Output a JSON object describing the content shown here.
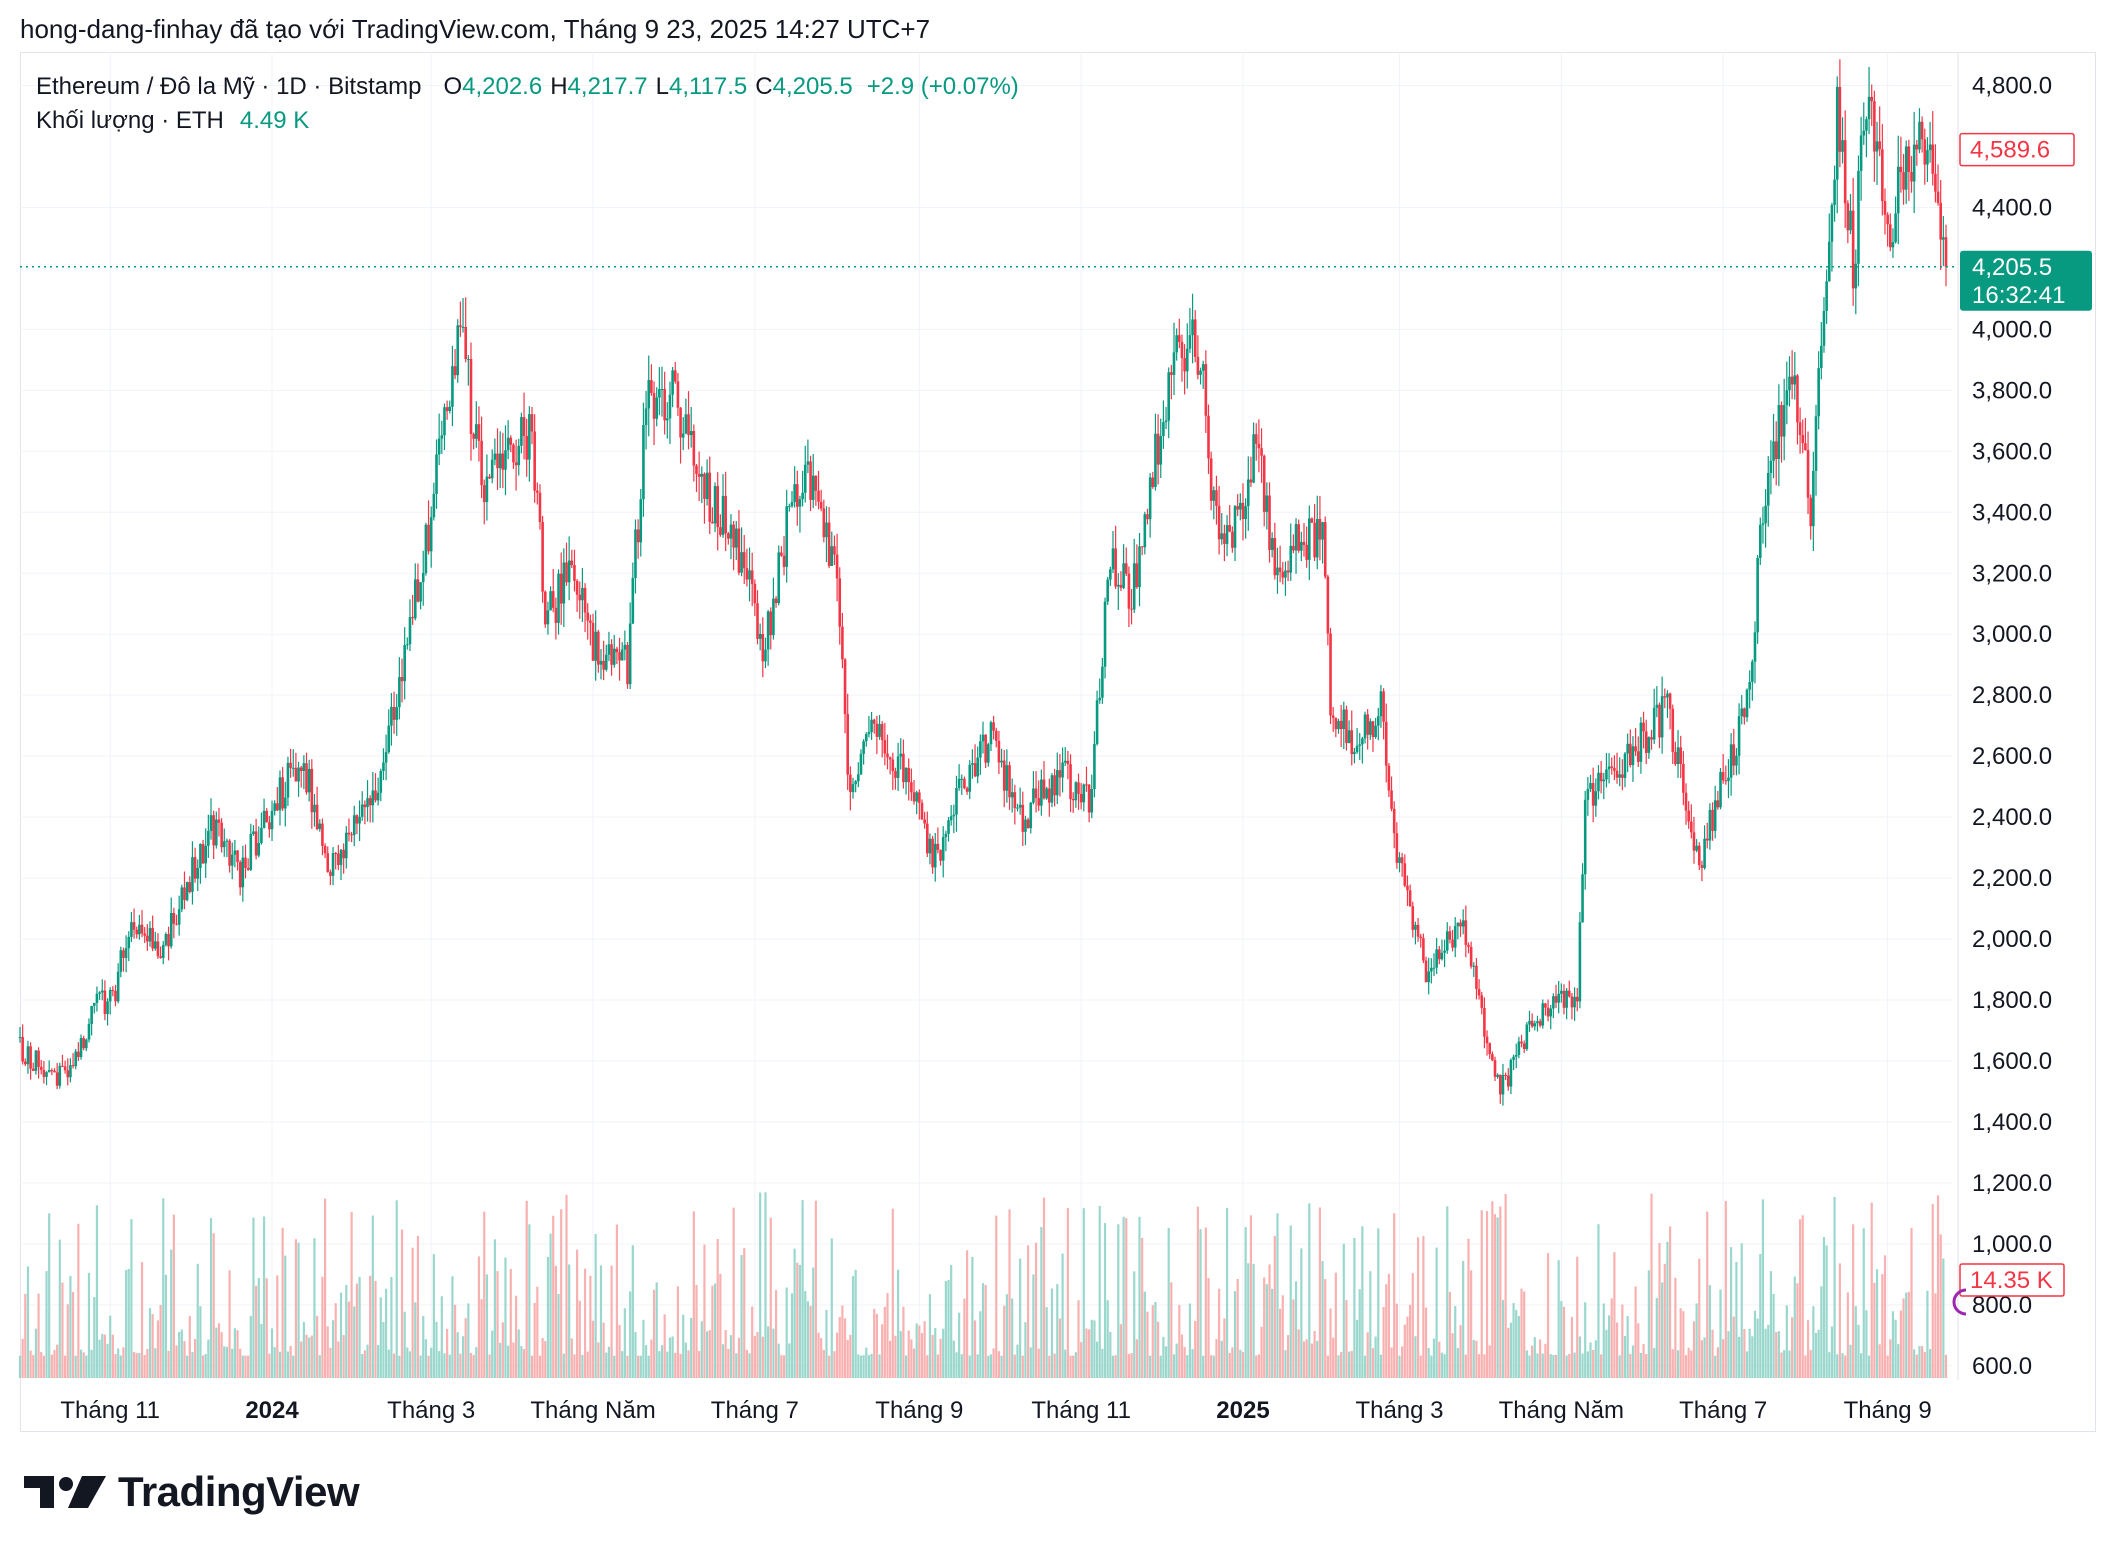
{
  "header": {
    "attribution": "hong-dang-finhay đã tạo với TradingView.com, Tháng 9 23, 2025 14:27 UTC+7"
  },
  "legend": {
    "symbol": "Ethereum / Đô la Mỹ · 1D · Bitstamp",
    "o_label": "O",
    "o_value": "4,202.6",
    "h_label": "H",
    "h_value": "4,217.7",
    "l_label": "L",
    "l_value": "4,117.5",
    "c_label": "C",
    "c_value": "4,205.5",
    "change": "+2.9 (+0.07%)",
    "volume_label": "Khối lượng · ETH",
    "volume_value": "4.49 K"
  },
  "logo": {
    "text": "TradingView"
  },
  "colors": {
    "up": "#089981",
    "down": "#f23645",
    "grid": "#f0f3fa",
    "text": "#131722"
  },
  "chart_data": {
    "type": "candlestick",
    "price_axis": {
      "ticks": [
        4800,
        4400,
        4000,
        3800,
        3600,
        3400,
        3200,
        3000,
        2800,
        2600,
        2400,
        2200,
        2000,
        1800,
        1600,
        1400,
        1200,
        1000,
        800,
        600
      ],
      "tick_labels": [
        "4,800.0",
        "4,400.0",
        "4,000.0",
        "3,800.0",
        "3,600.0",
        "3,400.0",
        "3,200.0",
        "3,000.0",
        "2,800.0",
        "2,600.0",
        "2,400.0",
        "2,200.0",
        "2,000.0",
        "1,800.0",
        "1,600.0",
        "1,400.0",
        "1,200.0",
        "1,000.0",
        "800.0",
        "600.0"
      ],
      "range": [
        560,
        4910
      ]
    },
    "time_axis": {
      "labels": [
        {
          "text": "Tháng 11",
          "date": "2023-11-01",
          "bold": false
        },
        {
          "text": "2024",
          "date": "2024-01-01",
          "bold": true
        },
        {
          "text": "Tháng 3",
          "date": "2024-03-01",
          "bold": false
        },
        {
          "text": "Tháng Năm",
          "date": "2024-05-01",
          "bold": false
        },
        {
          "text": "Tháng 7",
          "date": "2024-07-01",
          "bold": false
        },
        {
          "text": "Tháng 9",
          "date": "2024-09-01",
          "bold": false
        },
        {
          "text": "Tháng 11",
          "date": "2024-11-01",
          "bold": false
        },
        {
          "text": "2025",
          "date": "2025-01-01",
          "bold": true
        },
        {
          "text": "Tháng 3",
          "date": "2025-03-01",
          "bold": false
        },
        {
          "text": "Tháng Năm",
          "date": "2025-05-01",
          "bold": false
        },
        {
          "text": "Tháng 7",
          "date": "2025-07-01",
          "bold": false
        },
        {
          "text": "Tháng 9",
          "date": "2025-09-01",
          "bold": false
        }
      ],
      "range": [
        "2023-09-28",
        "2025-09-23"
      ]
    },
    "close_path": [
      {
        "date": "2023-09-28",
        "close": 1640
      },
      {
        "date": "2023-10-12",
        "close": 1545
      },
      {
        "date": "2023-10-20",
        "close": 1610
      },
      {
        "date": "2023-10-27",
        "close": 1790
      },
      {
        "date": "2023-11-02",
        "close": 1800
      },
      {
        "date": "2023-11-09",
        "close": 2090
      },
      {
        "date": "2023-11-20",
        "close": 1960
      },
      {
        "date": "2023-12-09",
        "close": 2370
      },
      {
        "date": "2023-12-20",
        "close": 2220
      },
      {
        "date": "2023-12-28",
        "close": 2360
      },
      {
        "date": "2024-01-12",
        "close": 2600
      },
      {
        "date": "2024-01-23",
        "close": 2220
      },
      {
        "date": "2024-02-08",
        "close": 2450
      },
      {
        "date": "2024-02-27",
        "close": 3240
      },
      {
        "date": "2024-03-12",
        "close": 4000
      },
      {
        "date": "2024-03-20",
        "close": 3500
      },
      {
        "date": "2024-04-08",
        "close": 3680
      },
      {
        "date": "2024-04-13",
        "close": 3030
      },
      {
        "date": "2024-04-22",
        "close": 3200
      },
      {
        "date": "2024-05-01",
        "close": 2980
      },
      {
        "date": "2024-05-14",
        "close": 2900
      },
      {
        "date": "2024-05-21",
        "close": 3750
      },
      {
        "date": "2024-06-01",
        "close": 3780
      },
      {
        "date": "2024-06-11",
        "close": 3500
      },
      {
        "date": "2024-06-24",
        "close": 3300
      },
      {
        "date": "2024-07-05",
        "close": 2950
      },
      {
        "date": "2024-07-15",
        "close": 3450
      },
      {
        "date": "2024-07-22",
        "close": 3500
      },
      {
        "date": "2024-08-01",
        "close": 3200
      },
      {
        "date": "2024-08-05",
        "close": 2500
      },
      {
        "date": "2024-08-14",
        "close": 2700
      },
      {
        "date": "2024-09-01",
        "close": 2450
      },
      {
        "date": "2024-09-06",
        "close": 2250
      },
      {
        "date": "2024-09-20",
        "close": 2550
      },
      {
        "date": "2024-09-28",
        "close": 2650
      },
      {
        "date": "2024-10-10",
        "close": 2400
      },
      {
        "date": "2024-10-24",
        "close": 2550
      },
      {
        "date": "2024-11-04",
        "close": 2450
      },
      {
        "date": "2024-11-12",
        "close": 3250
      },
      {
        "date": "2024-11-20",
        "close": 3100
      },
      {
        "date": "2024-11-28",
        "close": 3550
      },
      {
        "date": "2024-12-06",
        "close": 3900
      },
      {
        "date": "2024-12-16",
        "close": 3950
      },
      {
        "date": "2024-12-20",
        "close": 3400
      },
      {
        "date": "2024-12-31",
        "close": 3350
      },
      {
        "date": "2025-01-06",
        "close": 3650
      },
      {
        "date": "2025-01-13",
        "close": 3200
      },
      {
        "date": "2025-01-20",
        "close": 3300
      },
      {
        "date": "2025-01-31",
        "close": 3300
      },
      {
        "date": "2025-02-03",
        "close": 2800
      },
      {
        "date": "2025-02-10",
        "close": 2650
      },
      {
        "date": "2025-02-22",
        "close": 2750
      },
      {
        "date": "2025-02-27",
        "close": 2300
      },
      {
        "date": "2025-03-11",
        "close": 1900
      },
      {
        "date": "2025-03-24",
        "close": 2050
      },
      {
        "date": "2025-04-08",
        "close": 1500
      },
      {
        "date": "2025-04-22",
        "close": 1750
      },
      {
        "date": "2025-05-07",
        "close": 1820
      },
      {
        "date": "2025-05-10",
        "close": 2450
      },
      {
        "date": "2025-05-25",
        "close": 2600
      },
      {
        "date": "2025-06-10",
        "close": 2750
      },
      {
        "date": "2025-06-22",
        "close": 2250
      },
      {
        "date": "2025-06-30",
        "close": 2500
      },
      {
        "date": "2025-07-10",
        "close": 2750
      },
      {
        "date": "2025-07-18",
        "close": 3600
      },
      {
        "date": "2025-07-28",
        "close": 3800
      },
      {
        "date": "2025-08-03",
        "close": 3400
      },
      {
        "date": "2025-08-09",
        "close": 4200
      },
      {
        "date": "2025-08-13",
        "close": 4700
      },
      {
        "date": "2025-08-19",
        "close": 4200
      },
      {
        "date": "2025-08-24",
        "close": 4780
      },
      {
        "date": "2025-09-01",
        "close": 4300
      },
      {
        "date": "2025-09-13",
        "close": 4700
      },
      {
        "date": "2025-09-23",
        "close": 4205.5
      }
    ],
    "volume_scale_max": 14350,
    "last_price": {
      "value": 4205.5,
      "label": "4,205.5",
      "countdown": "16:32:41"
    },
    "high_marker": {
      "value": 4589.6,
      "label": "4,589.6"
    },
    "volume_marker": {
      "label": "14.35 K"
    }
  }
}
